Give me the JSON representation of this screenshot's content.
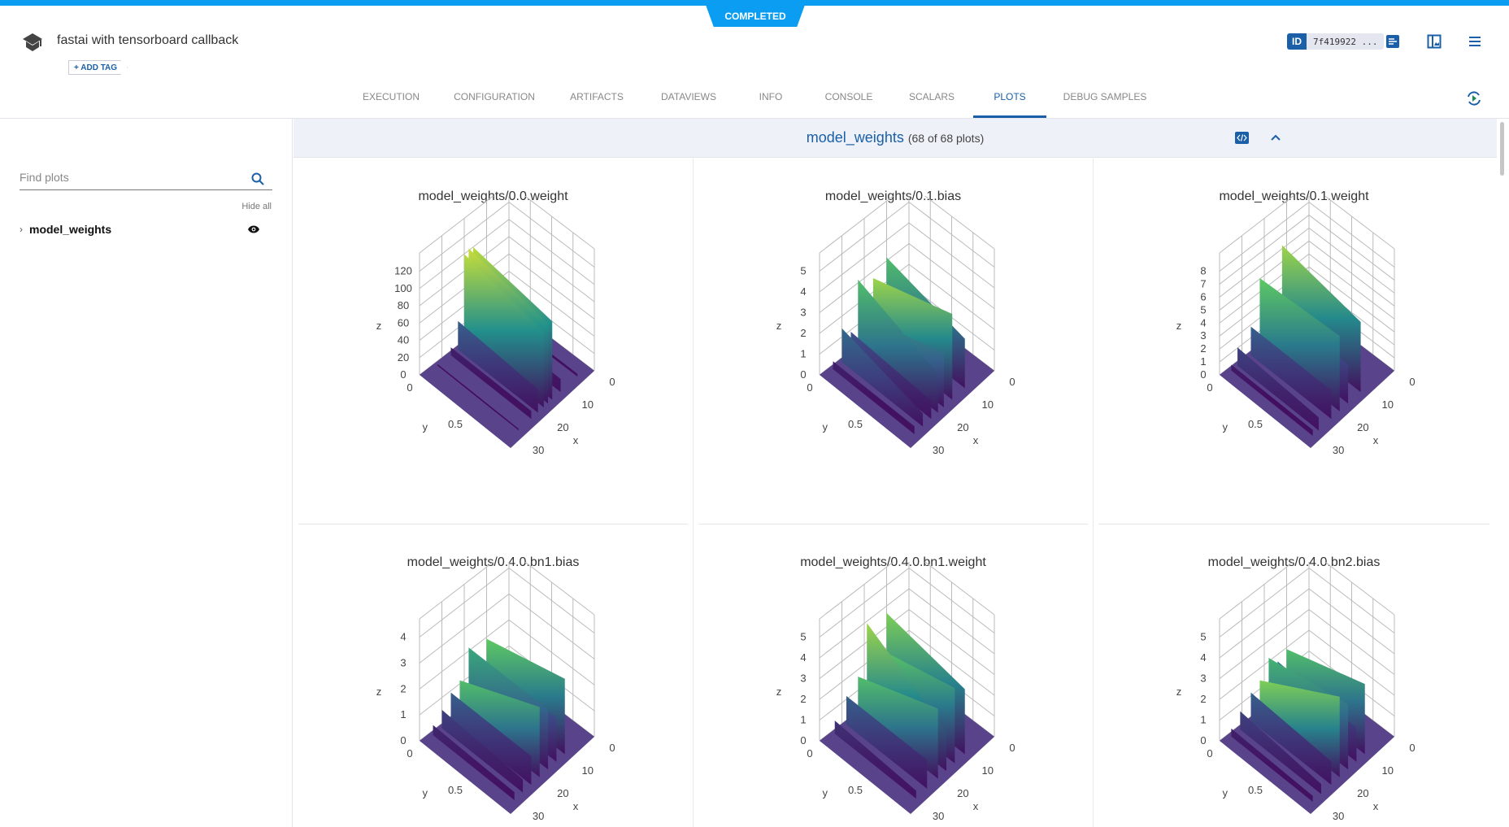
{
  "header": {
    "status": "COMPLETED",
    "title": "fastai with tensorboard callback",
    "add_tag": "+ ADD TAG",
    "id_label": "ID",
    "id_value": "7f419922 ..."
  },
  "tabs": [
    {
      "label": "EXECUTION"
    },
    {
      "label": "CONFIGURATION"
    },
    {
      "label": "ARTIFACTS"
    },
    {
      "label": "DATAVIEWS"
    },
    {
      "label": "INFO"
    },
    {
      "label": "CONSOLE"
    },
    {
      "label": "SCALARS"
    },
    {
      "label": "PLOTS",
      "active": true
    },
    {
      "label": "DEBUG SAMPLES"
    }
  ],
  "sidebar": {
    "search_placeholder": "Find plots",
    "hide_all": "Hide all",
    "groups": [
      {
        "label": "model_weights"
      }
    ]
  },
  "section": {
    "name": "model_weights",
    "count": "(68 of 68 plots)"
  },
  "colors": {
    "accent": "#1a5fa8",
    "status": "#0b9df2",
    "colorscale": [
      "#440154",
      "#3b528b",
      "#21918c",
      "#5ec962",
      "#fde725"
    ]
  },
  "plots": [
    {
      "title": "model_weights/0.0.weight",
      "z_ticks": [
        "0",
        "20",
        "40",
        "60",
        "80",
        "100",
        "120"
      ],
      "y_ticks": [
        "0",
        "0.5"
      ],
      "x_ticks": [
        "0",
        "10",
        "20",
        "30"
      ],
      "x_label": "x",
      "y_label": "y",
      "z_label": "z"
    },
    {
      "title": "model_weights/0.1.bias",
      "z_ticks": [
        "0",
        "1",
        "2",
        "3",
        "4",
        "5"
      ],
      "y_ticks": [
        "0",
        "0.5"
      ],
      "x_ticks": [
        "0",
        "10",
        "20",
        "30"
      ],
      "x_label": "x",
      "y_label": "y",
      "z_label": "z"
    },
    {
      "title": "model_weights/0.1.weight",
      "z_ticks": [
        "0",
        "1",
        "2",
        "3",
        "4",
        "5",
        "6",
        "7",
        "8"
      ],
      "y_ticks": [
        "0",
        "0.5"
      ],
      "x_ticks": [
        "0",
        "10",
        "20",
        "30"
      ],
      "x_label": "x",
      "y_label": "y",
      "z_label": "z"
    },
    {
      "title": "model_weights/0.4.0.bn1.bias",
      "z_ticks": [
        "0",
        "1",
        "2",
        "3",
        "4"
      ],
      "y_ticks": [
        "0",
        "0.5"
      ],
      "x_ticks": [
        "0",
        "10",
        "20",
        "30"
      ],
      "x_label": "x",
      "y_label": "y",
      "z_label": "z"
    },
    {
      "title": "model_weights/0.4.0.bn1.weight",
      "z_ticks": [
        "0",
        "1",
        "2",
        "3",
        "4",
        "5"
      ],
      "y_ticks": [
        "0",
        "0.5"
      ],
      "x_ticks": [
        "0",
        "10",
        "20",
        "30"
      ],
      "x_label": "x",
      "y_label": "y",
      "z_label": "z"
    },
    {
      "title": "model_weights/0.4.0.bn2.bias",
      "z_ticks": [
        "0",
        "1",
        "2",
        "3",
        "4",
        "5"
      ],
      "y_ticks": [
        "0",
        "0.5"
      ],
      "x_ticks": [
        "0",
        "10",
        "20",
        "30"
      ],
      "x_label": "x",
      "y_label": "y",
      "z_label": "z"
    }
  ]
}
